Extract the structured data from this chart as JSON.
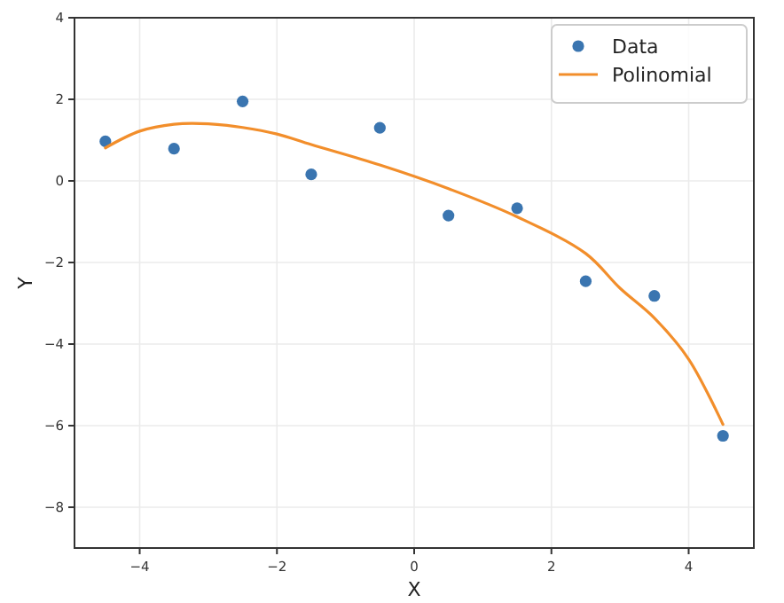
{
  "chart_data": {
    "type": "scatter",
    "xlabel": "X",
    "ylabel": "Y",
    "xlim": [
      -4.95,
      4.95
    ],
    "ylim": [
      -9,
      4
    ],
    "xticks": [
      {
        "value": -4,
        "label": "−4"
      },
      {
        "value": -2,
        "label": "−2"
      },
      0,
      2,
      4
    ],
    "yticks": [
      {
        "value": -8,
        "label": "−8"
      },
      {
        "value": -6,
        "label": "−6"
      },
      {
        "value": -4,
        "label": "−4"
      },
      {
        "value": -2,
        "label": "−2"
      },
      0,
      2,
      4
    ],
    "grid": true,
    "legend": "top right",
    "series": [
      {
        "name": "Data",
        "marker": "circle",
        "color": "#3a75b0",
        "x": [
          -4.5,
          -3.5,
          -2.5,
          -1.5,
          -0.5,
          0.5,
          1.5,
          2.5,
          3.5,
          4.5
        ],
        "values": [
          0.97,
          0.79,
          1.95,
          0.16,
          1.3,
          -0.85,
          -0.67,
          -2.46,
          -2.82,
          -6.25
        ]
      },
      {
        "name": "Polinomial",
        "type": "line",
        "color": "#f28e2b",
        "x": [
          -4.5,
          -4,
          -3.5,
          -3,
          -2.5,
          -2,
          -1.5,
          -0.5,
          0.5,
          1.5,
          2.5,
          3,
          3.5,
          4,
          4.5
        ],
        "values": [
          0.81,
          1.22,
          1.39,
          1.4,
          1.31,
          1.15,
          0.89,
          0.39,
          -0.19,
          -0.88,
          -1.78,
          -2.63,
          -3.36,
          -4.37,
          -5.97
        ]
      }
    ]
  }
}
